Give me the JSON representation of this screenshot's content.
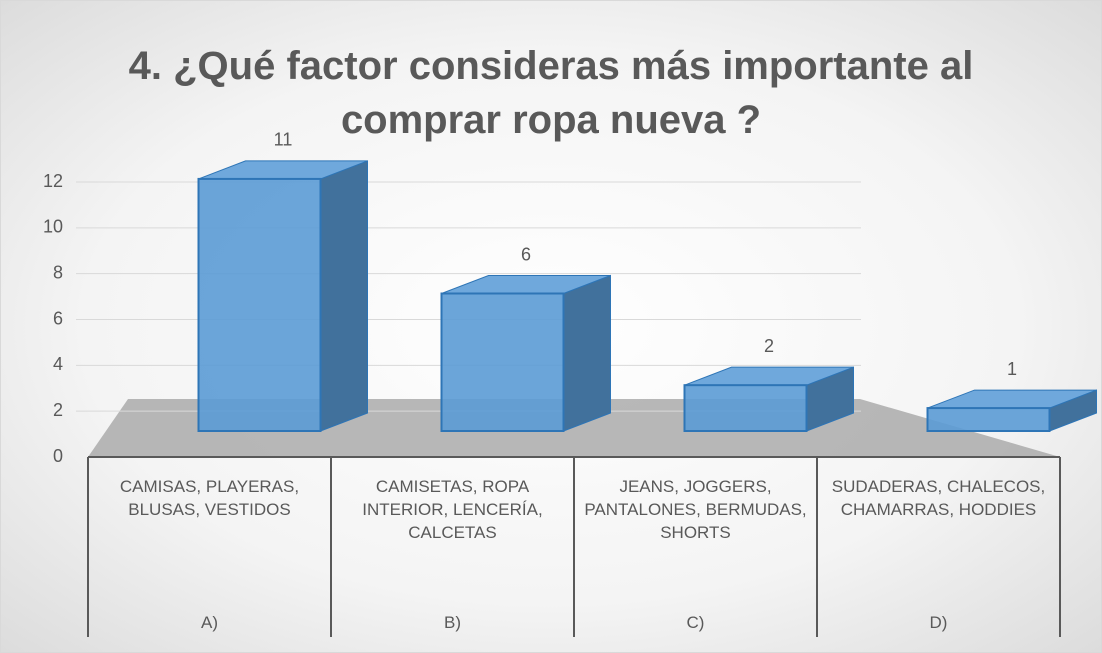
{
  "chart_data": {
    "type": "bar3d",
    "title": "4. ¿Qué factor consideras más importante al comprar ropa nueva ?",
    "categories": [
      "A)",
      "B)",
      "C)",
      "D)"
    ],
    "category_descriptions": [
      "CAMISAS, PLAYERAS, BLUSAS, VESTIDOS",
      "CAMISETAS, ROPA INTERIOR, LENCERÍA, CALCETAS",
      "JEANS, JOGGERS, PANTALONES, BERMUDAS, SHORTS",
      "SUDADERAS, CHALECOS, CHAMARRAS, HODDIES"
    ],
    "values": [
      11,
      6,
      2,
      1
    ],
    "color": "#5b9bd5",
    "ylim": [
      0,
      12
    ],
    "yticks": [
      0,
      2,
      4,
      6,
      8,
      10,
      12
    ],
    "grid": true
  }
}
